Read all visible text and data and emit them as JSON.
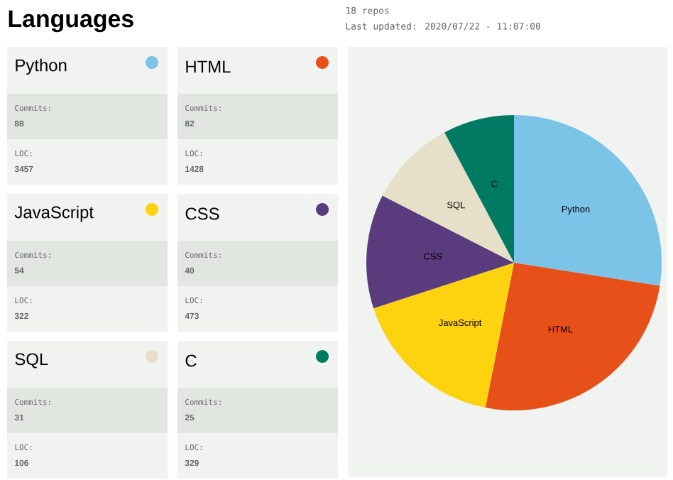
{
  "chart_data": [
    {
      "type": "other",
      "title": "Languages",
      "annotations": [
        "18 repos",
        "Last updated: 2020/07/22 - 11:07:00",
        "Python",
        "Commits:",
        "88",
        "LOC:",
        "3457",
        "HTML",
        "Commits:",
        "82",
        "LOC:",
        "1428",
        "JavaScript",
        "Commits:",
        "54",
        "LOC:",
        "322",
        "CSS",
        "Commits:",
        "40",
        "LOC:",
        "473",
        "SQL",
        "Commits:",
        "31",
        "LOC:",
        "106",
        "C",
        "Commits:",
        "25",
        "LOC:",
        "329"
      ]
    },
    {
      "type": "pie",
      "categories": [
        "Python",
        "HTML",
        "JavaScript",
        "CSS",
        "SQL",
        "C"
      ],
      "values": [
        27.5,
        25.6,
        16.9,
        12.5,
        9.7,
        7.8
      ],
      "colors": [
        "#7cc3e8",
        "#e8501a",
        "#fdd20f",
        "#5a3c7e",
        "#e6e0c8",
        "#007a63"
      ]
    }
  ]
}
